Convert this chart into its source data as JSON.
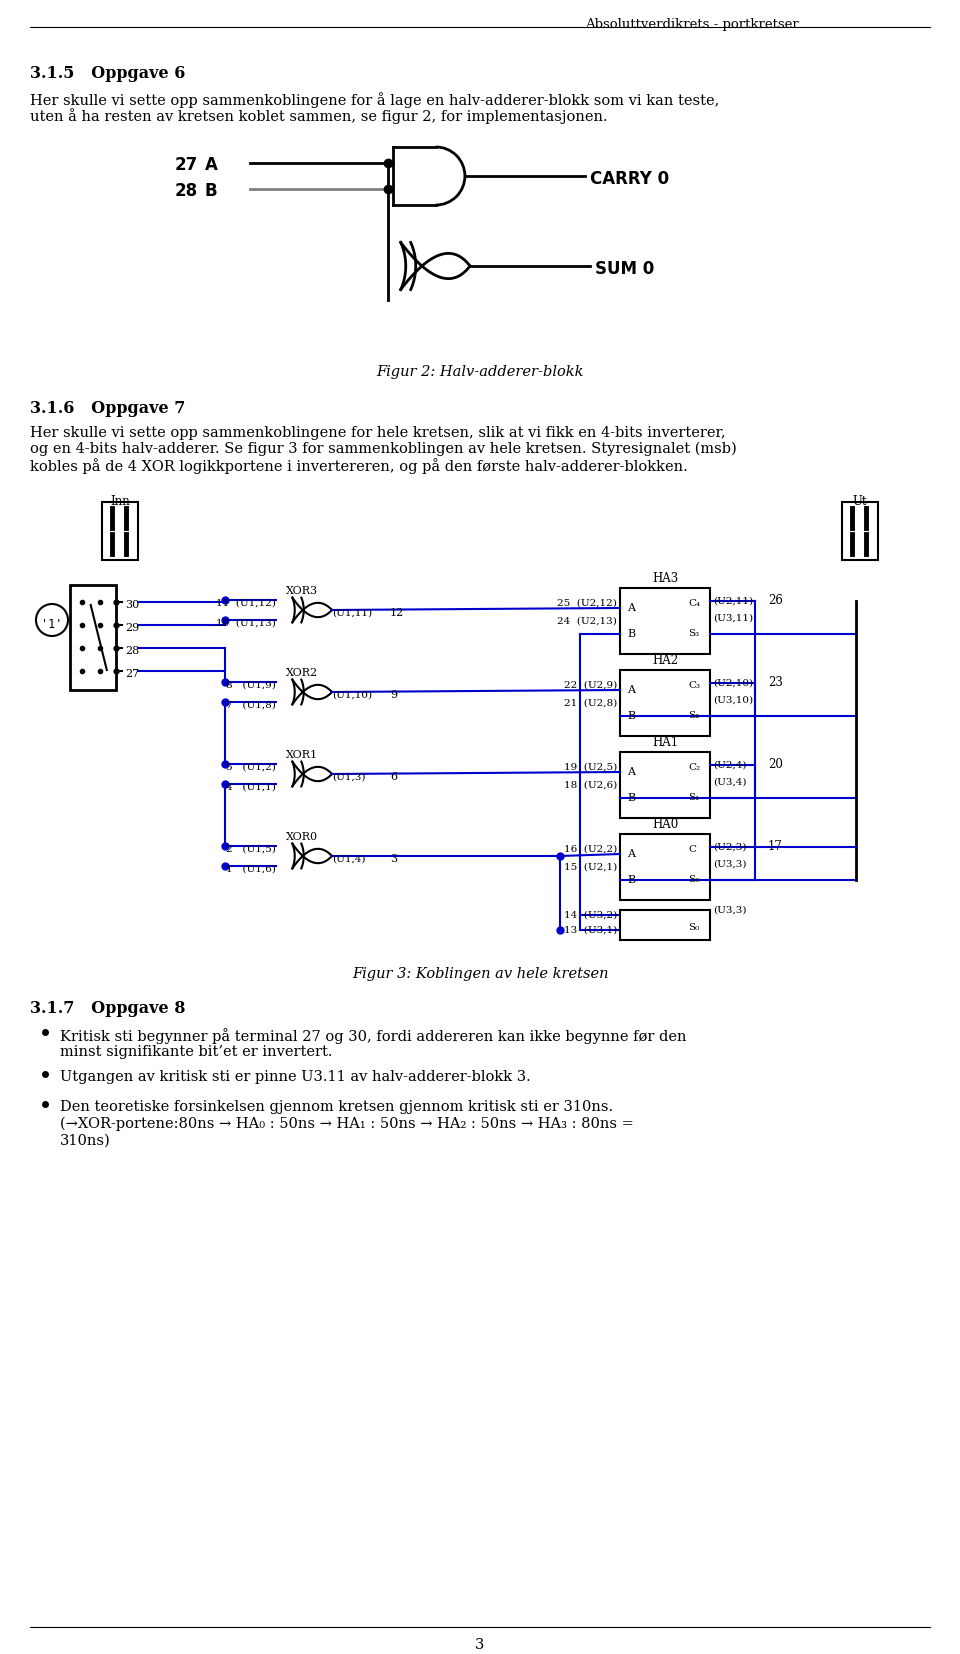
{
  "page_title": "Absoluttverdikrets - portkretser",
  "section_315": "3.1.5   Oppgave 6",
  "text_315a": "Her skulle vi sette opp sammenkoblingene for å lage en halv-adderer-blokk som vi kan teste,",
  "text_315b": "uten å ha resten av kretsen koblet sammen, se figur 2, for implementasjonen.",
  "fig2_caption": "Figur 2: Halv-adderer-blokk",
  "section_316": "3.1.6   Oppgave 7",
  "text_316a": "Her skulle vi sette opp sammenkoblingene for hele kretsen, slik at vi fikk en 4-bits inverterer,",
  "text_316b": "og en 4-bits halv-adderer. Se figur 3 for sammenkoblingen av hele kretsen. Styresignalet (msb)",
  "text_316c": "kobles på de 4 XOR logikkportene i invertereren, og på den første halv-adderer-blokken.",
  "fig3_caption": "Figur 3: Koblingen av hele kretsen",
  "section_317": "3.1.7   Oppgave 8",
  "bullet1a": "Kritisk sti begynner på terminal 27 og 30, fordi addereren kan ikke begynne før den",
  "bullet1b": "minst signifikante bit’et er invertert.",
  "bullet2": "Utgangen av kritisk sti er pinne U3.11 av halv-adderer-blokk 3.",
  "bullet3a": "Den teoretiske forsinkelsen gjennom kretsen gjennom kritisk sti er 310ns.",
  "bullet3b": "(→XOR-portene:80ns → HA₀ : 50ns → HA₁ : 50ns → HA₂ : 50ns → HA₃ : 80ns =",
  "bullet3c": "310ns)",
  "page_number": "3",
  "bg_color": "#ffffff",
  "blue": "#0000cd",
  "black": "#000000",
  "gray": "#808080"
}
